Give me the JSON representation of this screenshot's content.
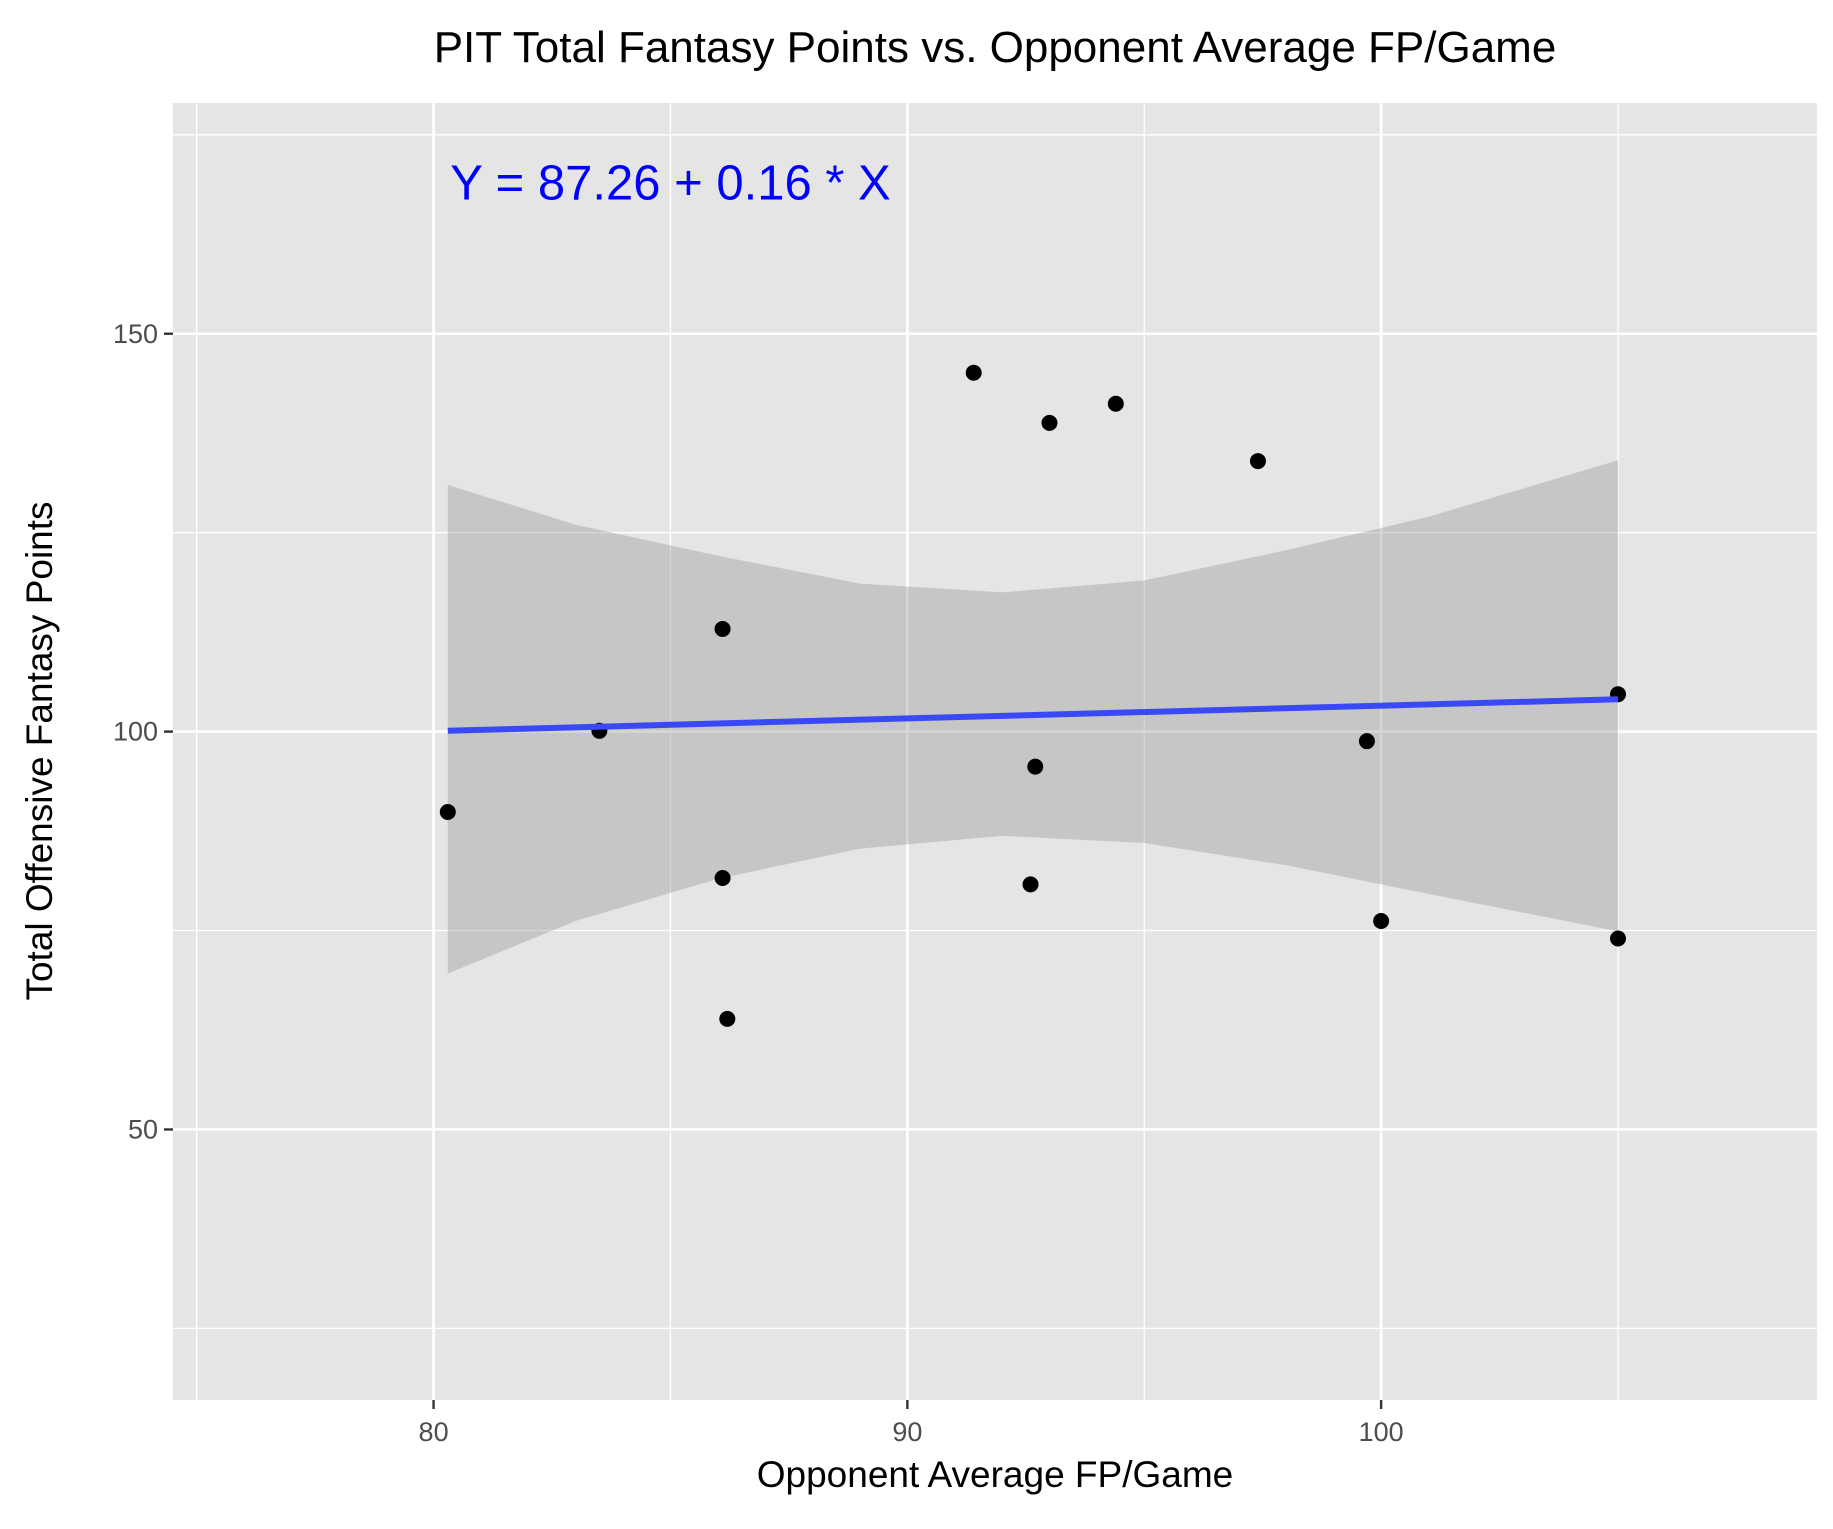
{
  "chart_data": {
    "type": "scatter",
    "title": "PIT Total Fantasy Points vs. Opponent Average FP/Game",
    "xlabel": "Opponent Average FP/Game",
    "ylabel": "Total Offensive Fantasy Points",
    "xlim": [
      74.5,
      109.2
    ],
    "ylim": [
      16,
      179
    ],
    "x_ticks": [
      80,
      90,
      100
    ],
    "y_ticks": [
      50,
      100,
      150
    ],
    "x_tick_labels": [
      "80",
      "90",
      "100"
    ],
    "y_tick_labels": [
      "50",
      "100",
      "150"
    ],
    "grid": true,
    "points": [
      {
        "x": 80.3,
        "y": 89.9
      },
      {
        "x": 83.5,
        "y": 100.1
      },
      {
        "x": 86.1,
        "y": 112.9
      },
      {
        "x": 86.1,
        "y": 81.6
      },
      {
        "x": 86.2,
        "y": 63.9
      },
      {
        "x": 91.4,
        "y": 145.1
      },
      {
        "x": 92.6,
        "y": 80.8
      },
      {
        "x": 92.7,
        "y": 95.6
      },
      {
        "x": 93.0,
        "y": 138.8
      },
      {
        "x": 94.4,
        "y": 141.2
      },
      {
        "x": 97.4,
        "y": 134.0
      },
      {
        "x": 99.7,
        "y": 98.8
      },
      {
        "x": 100.0,
        "y": 76.2
      },
      {
        "x": 105.0,
        "y": 104.7
      },
      {
        "x": 105.0,
        "y": 74.0
      }
    ],
    "fit": {
      "intercept": 87.26,
      "slope": 0.16,
      "x_range": [
        80.3,
        105.0
      ],
      "ci_band": [
        {
          "x": 80.3,
          "lo": 69.6,
          "hi": 131.0
        },
        {
          "x": 83.0,
          "lo": 76.2,
          "hi": 126.0
        },
        {
          "x": 86.0,
          "lo": 81.5,
          "hi": 122.1
        },
        {
          "x": 89.0,
          "lo": 85.3,
          "hi": 118.6
        },
        {
          "x": 92.0,
          "lo": 86.9,
          "hi": 117.5
        },
        {
          "x": 95.0,
          "lo": 86.0,
          "hi": 119.0
        },
        {
          "x": 98.0,
          "lo": 83.2,
          "hi": 122.8
        },
        {
          "x": 101.0,
          "lo": 79.6,
          "hi": 127.0
        },
        {
          "x": 105.0,
          "lo": 74.9,
          "hi": 134.1
        }
      ]
    },
    "annotation": {
      "text": "Y = 87.26 + 0.16 * X",
      "x": 85.0,
      "y": 169.0
    },
    "colors": {
      "panel": "#e5e5e5",
      "grid": "#ffffff",
      "points": "#000000",
      "fit_line": "#3949f5",
      "ci_band": "#999999",
      "annotation": "#0000ff"
    }
  }
}
